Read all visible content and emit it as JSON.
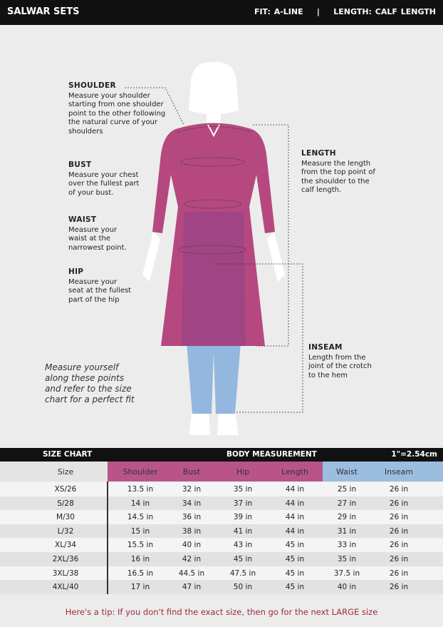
{
  "header": {
    "title": "SALWAR SETS",
    "fit": "FIT: A-LINE",
    "separator": "|",
    "length": "LENGTH: CALF LENGTH"
  },
  "guide": {
    "shoulder": {
      "title": "SHOULDER",
      "text": "Measure your shoulder starting from one shoulder point to the other following the natural curve of your shoulders"
    },
    "bust": {
      "title": "BUST",
      "text": "Measure your chest over the fullest part of your bust."
    },
    "waist": {
      "title": "WAIST",
      "text": "Measure your waist at the narrowest point."
    },
    "hip": {
      "title": "HIP",
      "text": "Measure your seat at the fullest part of the hip"
    },
    "length": {
      "title": "LENGTH",
      "text": "Measure the length from the top point of the shoulder to the calf length."
    },
    "inseam": {
      "title": "INSEAM",
      "text": "Length from the joint of the crotch to the hem"
    },
    "note": "Measure yourself along these points and refer to the size chart for a perfect fit"
  },
  "colors": {
    "kurta": "#b5497f",
    "pants": "#93b7de",
    "tip": "#9c2b3b"
  },
  "table": {
    "title": "SIZE CHART",
    "group": "BODY MEASUREMENT",
    "conversion": "1\"=2.54cm",
    "columns": [
      "Size",
      "Shoulder",
      "Bust",
      "Hip",
      "Length",
      "Waist",
      "Inseam"
    ],
    "rows": [
      [
        "XS/26",
        "13.5 in",
        "32 in",
        "35 in",
        "44 in",
        "25 in",
        "26 in"
      ],
      [
        "S/28",
        "14 in",
        "34 in",
        "37 in",
        "44 in",
        "27 in",
        "26 in"
      ],
      [
        "M/30",
        "14.5 in",
        "36 in",
        "39 in",
        "44 in",
        "29 in",
        "26 in"
      ],
      [
        "L/32",
        "15 in",
        "38 in",
        "41 in",
        "44 in",
        "31 in",
        "26 in"
      ],
      [
        "XL/34",
        "15.5 in",
        "40 in",
        "43 in",
        "45 in",
        "33 in",
        "26 in"
      ],
      [
        "2XL/36",
        "16 in",
        "42 in",
        "45 in",
        "45 in",
        "35 in",
        "26 in"
      ],
      [
        "3XL/38",
        "16.5 in",
        "44.5 in",
        "47.5 in",
        "45 in",
        "37.5 in",
        "26 in"
      ],
      [
        "4XL/40",
        "17 in",
        "47 in",
        "50 in",
        "45 in",
        "40 in",
        "26 in"
      ]
    ]
  },
  "tip": "Here's a tip: If you don't find the exact size, then go for the next LARGE size"
}
